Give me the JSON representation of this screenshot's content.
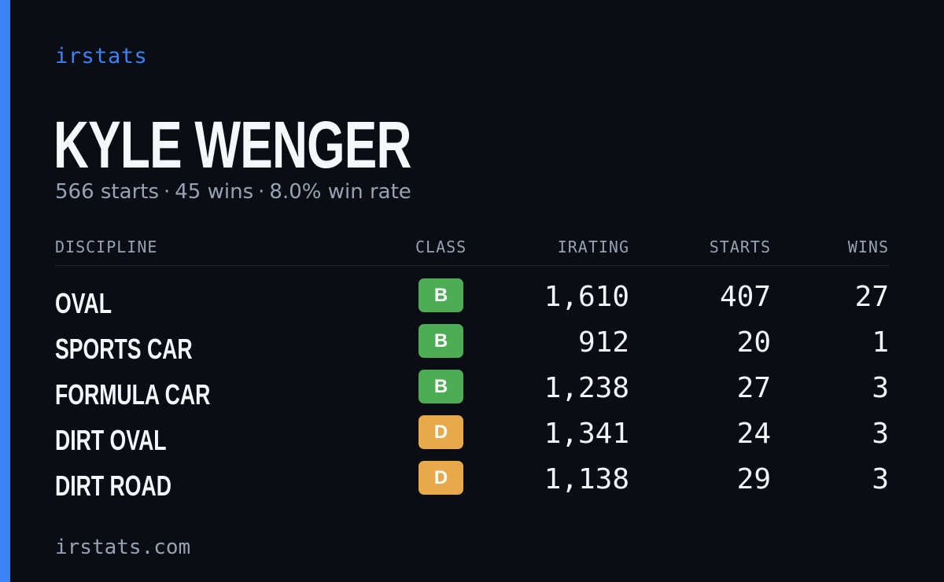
{
  "brand": "irstats",
  "driver": {
    "name": "KYLE WENGER",
    "starts": "566 starts",
    "wins": "45 wins",
    "win_rate": "8.0% win rate",
    "separator": "·"
  },
  "table": {
    "headers": {
      "discipline": "DISCIPLINE",
      "class": "CLASS",
      "irating": "IRATING",
      "starts": "STARTS",
      "wins": "WINS"
    },
    "rows": [
      {
        "discipline": "OVAL",
        "class": "B",
        "class_color": "#4cad55",
        "irating": "1,610",
        "starts": "407",
        "wins": "27"
      },
      {
        "discipline": "SPORTS CAR",
        "class": "B",
        "class_color": "#4cad55",
        "irating": "912",
        "starts": "20",
        "wins": "1"
      },
      {
        "discipline": "FORMULA CAR",
        "class": "B",
        "class_color": "#4cad55",
        "irating": "1,238",
        "starts": "27",
        "wins": "3"
      },
      {
        "discipline": "DIRT OVAL",
        "class": "D",
        "class_color": "#e8a94a",
        "irating": "1,341",
        "starts": "24",
        "wins": "3"
      },
      {
        "discipline": "DIRT ROAD",
        "class": "D",
        "class_color": "#e8a94a",
        "irating": "1,138",
        "starts": "29",
        "wins": "3"
      }
    ]
  },
  "footer": "irstats.com",
  "colors": {
    "background": "#0a0d14",
    "accent": "#3b82f6",
    "muted": "#98a2b3"
  }
}
